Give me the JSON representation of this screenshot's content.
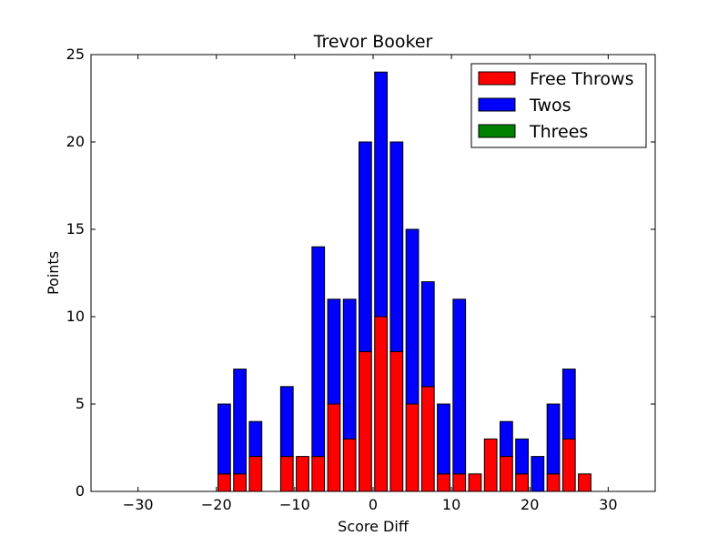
{
  "chart_data": {
    "type": "bar",
    "stacked": true,
    "title": "Trevor Booker",
    "xlabel": "Score Diff",
    "ylabel": "Points",
    "xlim": [
      -36,
      36
    ],
    "ylim": [
      0,
      25
    ],
    "xticks": [
      -30,
      -20,
      -10,
      0,
      10,
      20,
      30
    ],
    "yticks": [
      0,
      5,
      10,
      15,
      20,
      25
    ],
    "xtick_labels": [
      "−30",
      "−20",
      "−10",
      "0",
      "10",
      "20",
      "30"
    ],
    "ytick_labels": [
      "0",
      "5",
      "10",
      "15",
      "20",
      "25"
    ],
    "grid": false,
    "legend_position": "top-right",
    "x": [
      -35,
      -33,
      -31,
      -29,
      -27,
      -25,
      -23,
      -21,
      -19,
      -17,
      -15,
      -13,
      -11,
      -9,
      -7,
      -5,
      -3,
      -1,
      1,
      3,
      5,
      7,
      9,
      11,
      13,
      15,
      17,
      19,
      21,
      23,
      25,
      27,
      29,
      31,
      33,
      35
    ],
    "series": [
      {
        "name": "Free Throws",
        "color": "#ff0000",
        "values": [
          0,
          0,
          0,
          0,
          0,
          0,
          0,
          0,
          1,
          1,
          2,
          0,
          2,
          2,
          2,
          5,
          3,
          8,
          10,
          8,
          5,
          6,
          1,
          1,
          1,
          3,
          2,
          1,
          0,
          1,
          3,
          1,
          0,
          0,
          0,
          0
        ]
      },
      {
        "name": "Twos",
        "color": "#0000ff",
        "values": [
          0,
          0,
          0,
          0,
          0,
          0,
          0,
          0,
          4,
          6,
          2,
          0,
          4,
          0,
          12,
          6,
          8,
          12,
          14,
          12,
          10,
          6,
          4,
          10,
          0,
          0,
          2,
          2,
          2,
          4,
          4,
          0,
          0,
          0,
          0,
          0
        ]
      },
      {
        "name": "Threes",
        "color": "#008000",
        "values": [
          0,
          0,
          0,
          0,
          0,
          0,
          0,
          0,
          0,
          0,
          0,
          0,
          0,
          0,
          0,
          0,
          0,
          0,
          0,
          0,
          0,
          0,
          0,
          0,
          0,
          0,
          0,
          0,
          0,
          0,
          0,
          0,
          0,
          0,
          0,
          0
        ]
      }
    ]
  }
}
